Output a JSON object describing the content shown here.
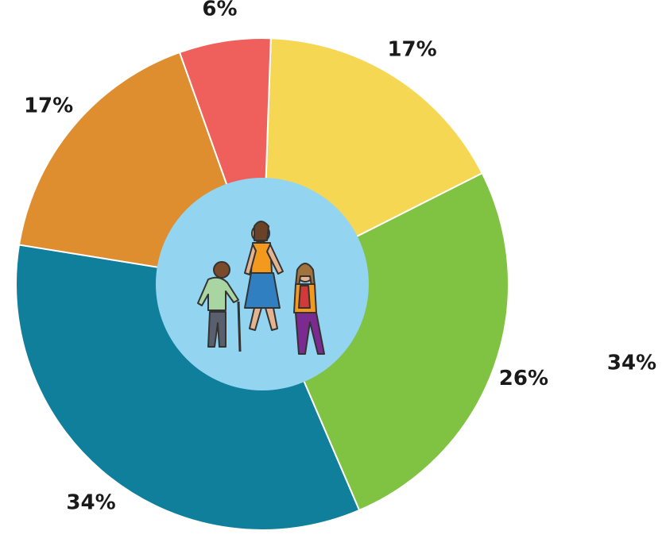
{
  "chart_data": {
    "type": "pie",
    "values": [
      17,
      26,
      34,
      17,
      6
    ],
    "value_labels": [
      "17%",
      "26%",
      "34%",
      "17%",
      "6%"
    ],
    "colors": [
      "#f5d753",
      "#80c242",
      "#0f7f9c",
      "#de8d2f",
      "#ef5f5b"
    ],
    "annotation": "34%"
  }
}
